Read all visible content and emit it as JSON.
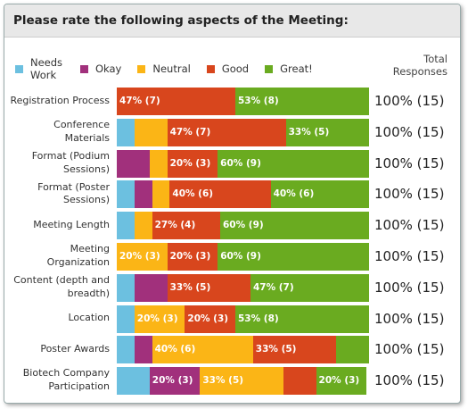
{
  "chart_data": {
    "type": "stacked-bar",
    "title": "Please rate the following aspects of the Meeting:",
    "total_header": "Total Responses",
    "categories": [
      "Registration Process",
      "Conference Materials",
      "Format (Podium Sessions)",
      "Format (Poster Sessions)",
      "Meeting Length",
      "Meeting Organization",
      "Content (depth and breadth)",
      "Location",
      "Poster Awards",
      "Biotech Company Participation"
    ],
    "series": [
      {
        "name": "Needs Work",
        "color": "#6cc0e0",
        "values": [
          0,
          7,
          0,
          7,
          7,
          0,
          7,
          7,
          7,
          13
        ],
        "value_labels": [
          null,
          null,
          null,
          null,
          null,
          null,
          null,
          null,
          null,
          null
        ]
      },
      {
        "name": "Okay",
        "color": "#a1307c",
        "values": [
          0,
          0,
          13,
          7,
          0,
          0,
          13,
          0,
          7,
          20
        ],
        "value_labels": [
          null,
          null,
          null,
          null,
          null,
          null,
          null,
          null,
          null,
          "20% (3)"
        ]
      },
      {
        "name": "Neutral",
        "color": "#fbb516",
        "values": [
          0,
          13,
          7,
          7,
          7,
          20,
          0,
          20,
          40,
          33
        ],
        "value_labels": [
          null,
          null,
          null,
          null,
          null,
          "20% (3)",
          null,
          "20% (3)",
          "40% (6)",
          "33% (5)"
        ]
      },
      {
        "name": "Good",
        "color": "#d8461d",
        "values": [
          47,
          47,
          20,
          40,
          27,
          20,
          33,
          20,
          33,
          13
        ],
        "value_labels": [
          "47% (7)",
          "47% (7)",
          "20% (3)",
          "40% (6)",
          "27% (4)",
          "20% (3)",
          "33% (5)",
          "20% (3)",
          "33% (5)",
          null
        ]
      },
      {
        "name": "Great!",
        "color": "#6aab20",
        "values": [
          53,
          33,
          60,
          40,
          60,
          60,
          47,
          53,
          13,
          20
        ],
        "value_labels": [
          "53% (8)",
          "33% (5)",
          "60% (9)",
          "40% (6)",
          "60% (9)",
          "60% (9)",
          "47% (7)",
          "53% (8)",
          null,
          "20% (3)"
        ]
      }
    ],
    "totals": [
      "100% (15)",
      "100% (15)",
      "100% (15)",
      "100% (15)",
      "100% (15)",
      "100% (15)",
      "100% (15)",
      "100% (15)",
      "100% (15)",
      "100% (15)"
    ]
  }
}
